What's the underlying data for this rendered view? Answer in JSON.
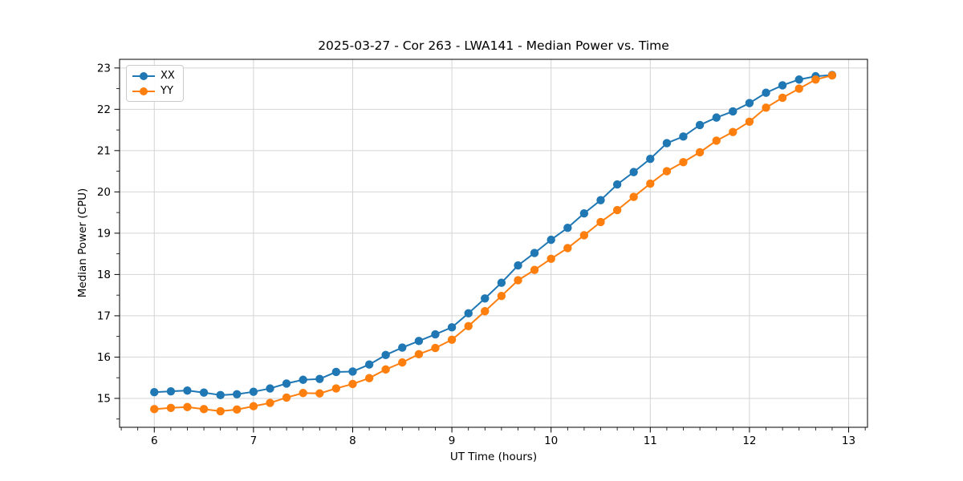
{
  "figure": {
    "title": "2025-03-27 - Cor 263 - LWA141 - Median Power vs. Time"
  },
  "chart_data": {
    "type": "line",
    "title": "2025-03-27 - Cor 263 - LWA141 - Median Power vs. Time",
    "xlabel": "UT Time (hours)",
    "ylabel": "Median Power (CPU)",
    "xlim": [
      5.65,
      13.19
    ],
    "ylim": [
      14.3,
      23.21
    ],
    "x_ticks": [
      6,
      7,
      8,
      9,
      10,
      11,
      12,
      13
    ],
    "x_tick_labels": [
      "6",
      "7",
      "8",
      "9",
      "10",
      "11",
      "12",
      "13"
    ],
    "y_ticks": [
      15,
      16,
      17,
      18,
      19,
      20,
      21,
      22,
      23
    ],
    "y_tick_labels": [
      "15",
      "16",
      "17",
      "18",
      "19",
      "20",
      "21",
      "22",
      "23"
    ],
    "x_minor_step": 0.16667,
    "y_minor_step": 0.5,
    "grid": true,
    "grid_color": "#d4d4d4",
    "legend_position": "upper-left",
    "x": [
      6.0,
      6.167,
      6.333,
      6.5,
      6.667,
      6.833,
      7.0,
      7.167,
      7.333,
      7.5,
      7.667,
      7.833,
      8.0,
      8.167,
      8.333,
      8.5,
      8.667,
      8.833,
      9.0,
      9.167,
      9.333,
      9.5,
      9.667,
      9.833,
      10.0,
      10.167,
      10.333,
      10.5,
      10.667,
      10.833,
      11.0,
      11.167,
      11.333,
      11.5,
      11.667,
      11.833,
      12.0,
      12.167,
      12.333,
      12.5,
      12.667,
      12.833
    ],
    "series": [
      {
        "name": "XX",
        "color": "#1f77b4",
        "values": [
          15.15,
          15.17,
          15.19,
          15.14,
          15.08,
          15.1,
          15.16,
          15.24,
          15.36,
          15.45,
          15.47,
          15.64,
          15.65,
          15.82,
          16.05,
          16.23,
          16.39,
          16.55,
          16.72,
          17.06,
          17.42,
          17.8,
          18.22,
          18.52,
          18.84,
          19.13,
          19.48,
          19.8,
          20.18,
          20.48,
          20.8,
          21.18,
          21.34,
          21.62,
          21.8,
          21.95,
          22.15,
          22.4,
          22.58,
          22.72,
          22.8,
          22.83
        ]
      },
      {
        "name": "YY",
        "color": "#ff7f0e",
        "values": [
          14.74,
          14.77,
          14.79,
          14.74,
          14.69,
          14.73,
          14.81,
          14.89,
          15.02,
          15.13,
          15.12,
          15.24,
          15.35,
          15.49,
          15.7,
          15.87,
          16.07,
          16.22,
          16.42,
          16.75,
          17.11,
          17.48,
          17.86,
          18.11,
          18.38,
          18.64,
          18.95,
          19.27,
          19.56,
          19.88,
          20.2,
          20.5,
          20.72,
          20.96,
          21.24,
          21.45,
          21.7,
          22.04,
          22.28,
          22.5,
          22.72,
          22.82
        ]
      }
    ]
  }
}
